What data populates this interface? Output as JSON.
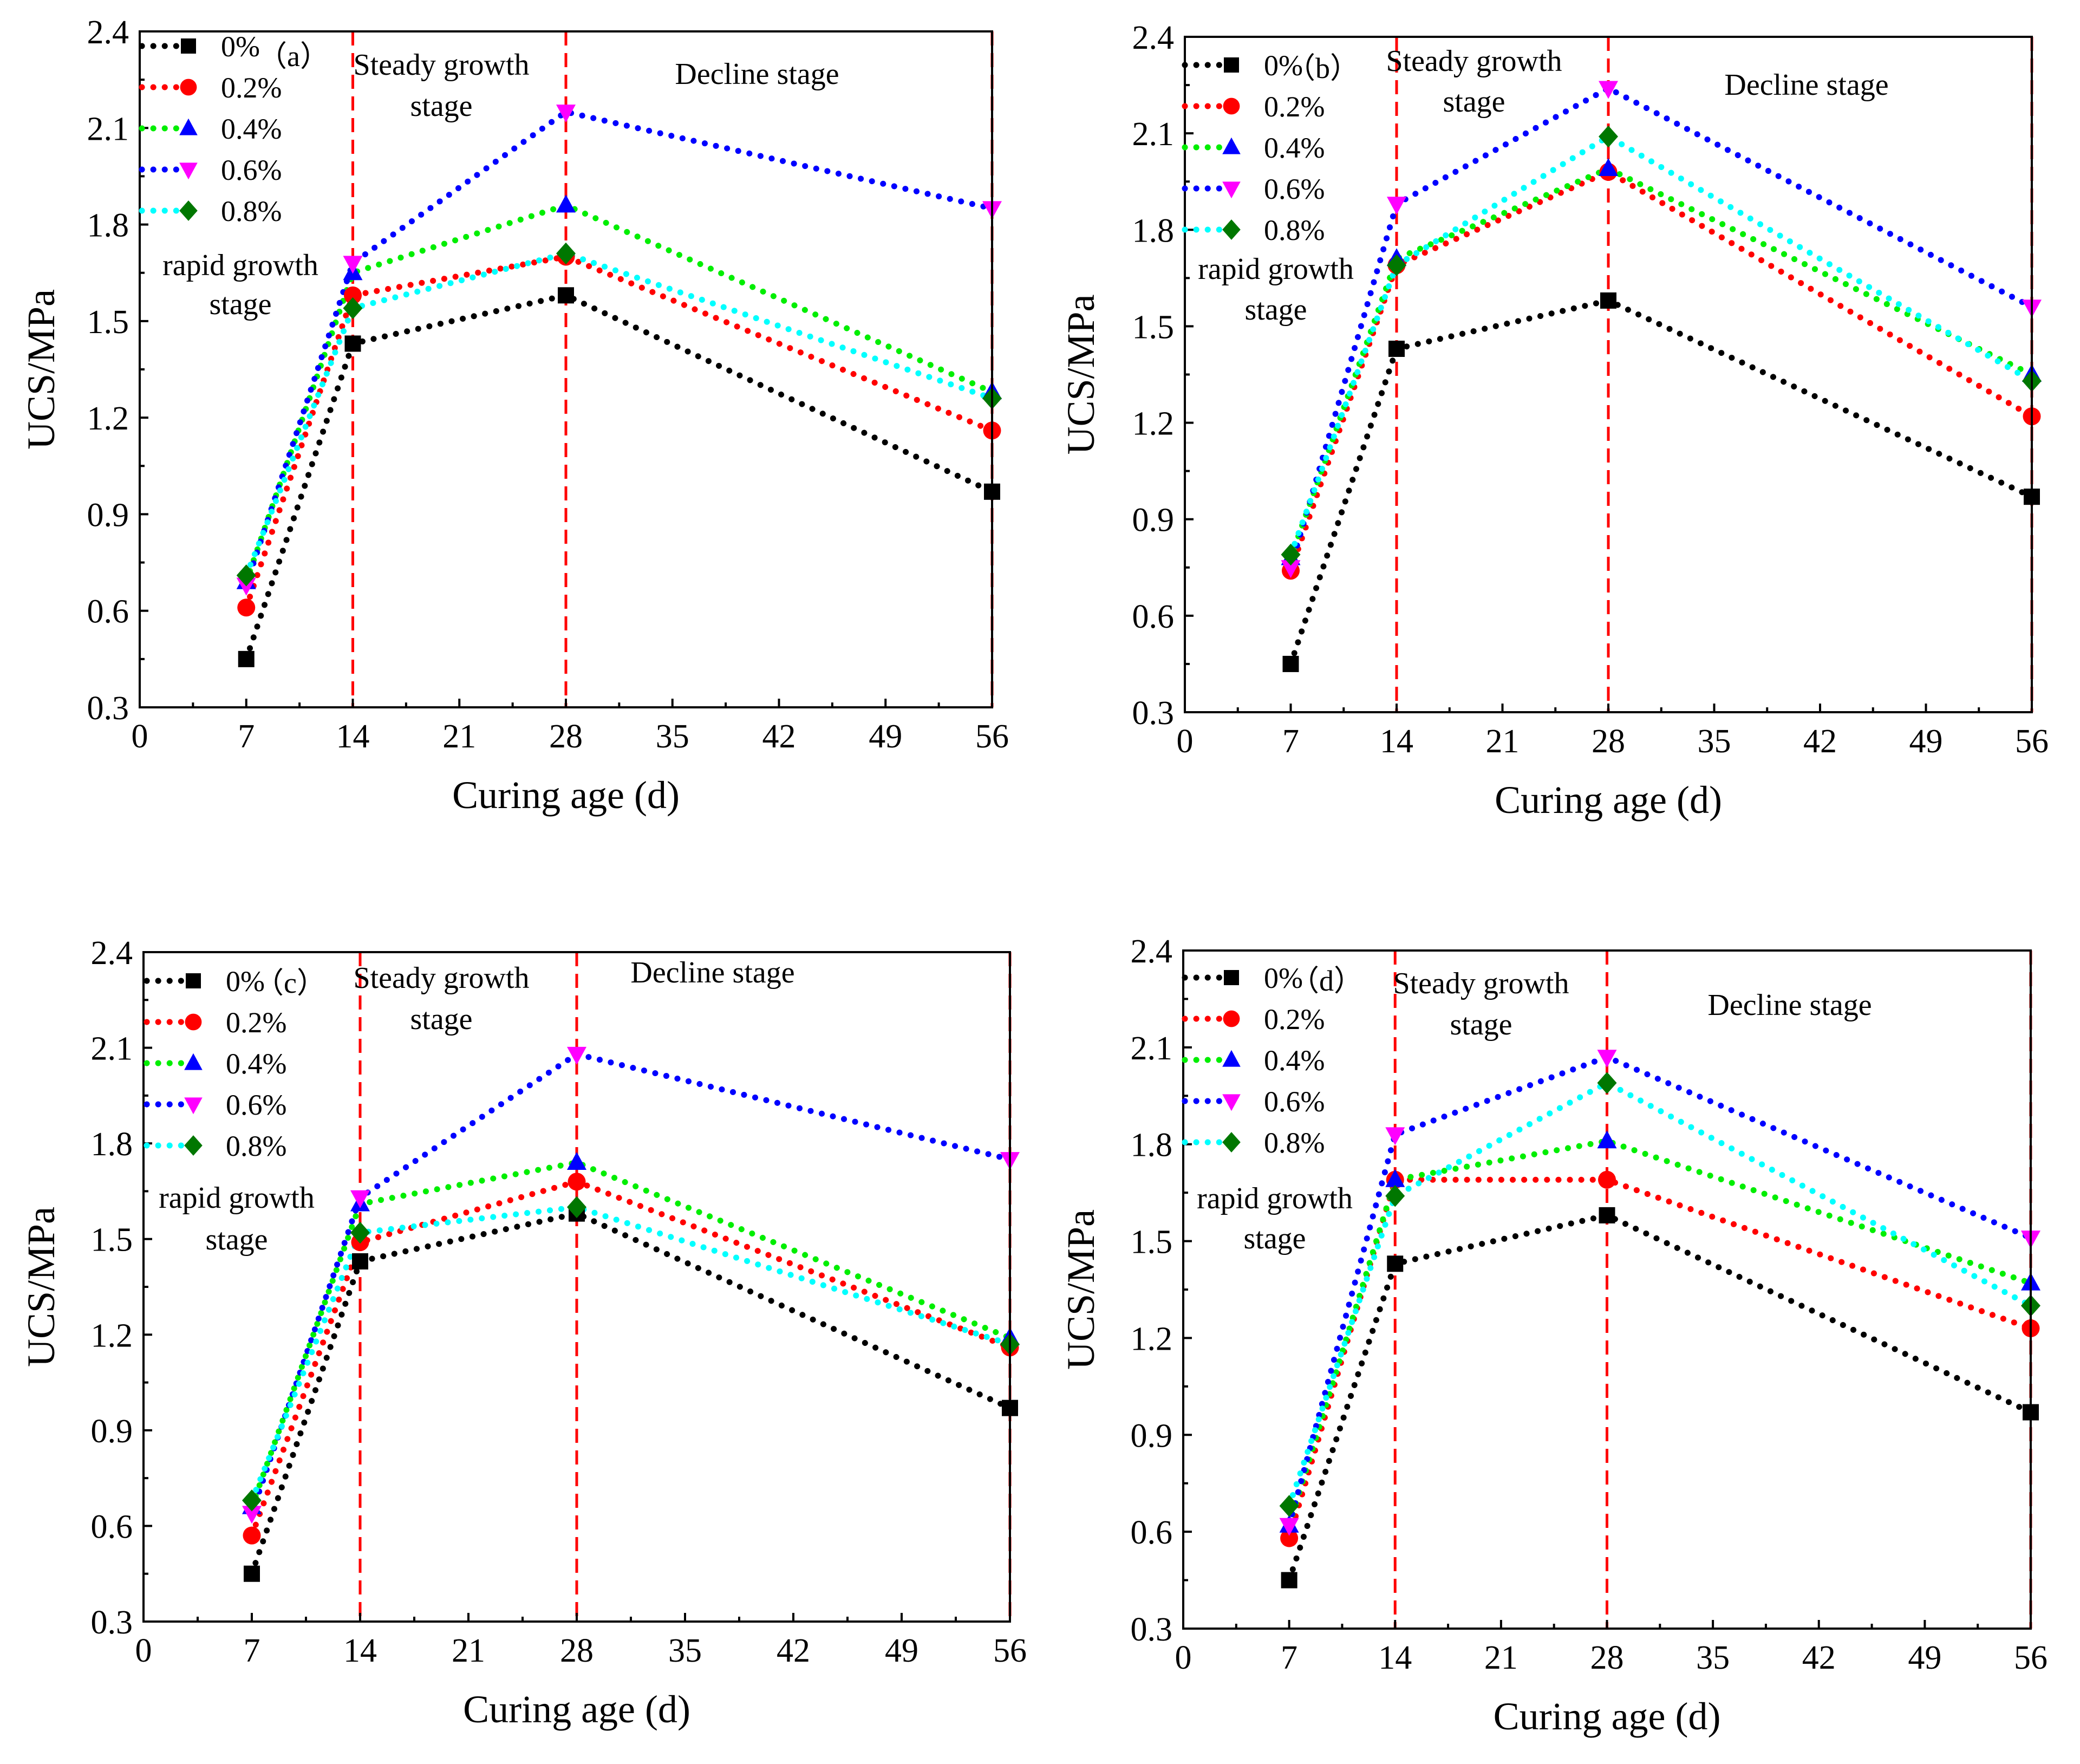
{
  "figure": {
    "series_names": [
      "0%",
      "0.2%",
      "0.4%",
      "0.6%",
      "0.8%"
    ],
    "colors": [
      "#000000",
      "#ff0000",
      "#00ee00",
      "#0000ff",
      "#00ffff"
    ],
    "marker_colors": [
      "#000000",
      "#ff0000",
      "#0000ff",
      "#ff00ff",
      "#007700"
    ],
    "markers": [
      "square",
      "circle",
      "triangle-up",
      "triangle-down",
      "diamond"
    ],
    "stage_line_color": "#ff0000"
  },
  "chart_data": [
    {
      "type": "line",
      "panel_label": "（a）",
      "xlabel": "Curing age (d)",
      "ylabel": "UCS/MPa",
      "xlim": [
        0,
        56
      ],
      "ylim": [
        0.3,
        2.4
      ],
      "xticks": [
        0,
        7,
        14,
        21,
        28,
        35,
        42,
        49,
        56
      ],
      "yticks": [
        "0.3",
        "0.6",
        "0.9",
        "1.2",
        "1.5",
        "1.8",
        "2.1",
        "2.4"
      ],
      "x": [
        7,
        14,
        28,
        56
      ],
      "stage_lines": [
        14,
        28,
        56
      ],
      "annotations": {
        "rapid": [
          "rapid growth",
          "stage"
        ],
        "steady": [
          "Steady growth",
          "stage"
        ],
        "decline": [
          "Decline stage"
        ]
      },
      "series": [
        {
          "name": "0%",
          "values": [
            0.45,
            1.43,
            1.58,
            0.97
          ]
        },
        {
          "name": "0.2%",
          "values": [
            0.61,
            1.58,
            1.7,
            1.16
          ]
        },
        {
          "name": "0.4%",
          "values": [
            0.69,
            1.65,
            1.86,
            1.28
          ]
        },
        {
          "name": "0.6%",
          "values": [
            0.68,
            1.68,
            2.15,
            1.85
          ]
        },
        {
          "name": "0.8%",
          "values": [
            0.71,
            1.54,
            1.71,
            1.26
          ]
        }
      ]
    },
    {
      "type": "line",
      "panel_label": "（b）",
      "xlabel": "Curing age (d)",
      "ylabel": "UCS/MPa",
      "xlim": [
        0,
        56
      ],
      "ylim": [
        0.3,
        2.4
      ],
      "xticks": [
        0,
        7,
        14,
        21,
        28,
        35,
        42,
        49,
        56
      ],
      "yticks": [
        "0.3",
        "0.6",
        "0.9",
        "1.2",
        "1.5",
        "1.8",
        "2.1",
        "2.4"
      ],
      "x": [
        7,
        14,
        28,
        56
      ],
      "stage_lines": [
        14,
        28,
        56
      ],
      "annotations": {
        "rapid": [
          "rapid growth",
          "stage"
        ],
        "steady": [
          "Steady growth",
          "stage"
        ],
        "decline": [
          "Decline stage"
        ]
      },
      "series": [
        {
          "name": "0%",
          "values": [
            0.45,
            1.43,
            1.58,
            0.97
          ]
        },
        {
          "name": "0.2%",
          "values": [
            0.74,
            1.69,
            1.98,
            1.22
          ]
        },
        {
          "name": "0.4%",
          "values": [
            0.78,
            1.71,
            1.99,
            1.35
          ]
        },
        {
          "name": "0.6%",
          "values": [
            0.75,
            1.88,
            2.24,
            1.56
          ]
        },
        {
          "name": "0.8%",
          "values": [
            0.79,
            1.69,
            2.09,
            1.33
          ]
        }
      ]
    },
    {
      "type": "line",
      "panel_label": "（c）",
      "xlabel": "Curing age (d)",
      "ylabel": "UCS/MPa",
      "xlim": [
        0,
        56
      ],
      "ylim": [
        0.3,
        2.4
      ],
      "xticks": [
        0,
        7,
        14,
        21,
        28,
        35,
        42,
        49,
        56
      ],
      "yticks": [
        "0.3",
        "0.6",
        "0.9",
        "1.2",
        "1.5",
        "1.8",
        "2.1",
        "2.4"
      ],
      "x": [
        7,
        14,
        28,
        56
      ],
      "stage_lines": [
        14,
        28,
        56
      ],
      "annotations": {
        "rapid": [
          "rapid growth",
          "stage"
        ],
        "steady": [
          "Steady growth",
          "stage"
        ],
        "decline": [
          "Decline stage"
        ]
      },
      "series": [
        {
          "name": "0%",
          "values": [
            0.45,
            1.43,
            1.58,
            0.97
          ]
        },
        {
          "name": "0.2%",
          "values": [
            0.57,
            1.49,
            1.68,
            1.16
          ]
        },
        {
          "name": "0.4%",
          "values": [
            0.66,
            1.61,
            1.74,
            1.19
          ]
        },
        {
          "name": "0.6%",
          "values": [
            0.64,
            1.63,
            2.08,
            1.75
          ]
        },
        {
          "name": "0.8%",
          "values": [
            0.68,
            1.52,
            1.6,
            1.17
          ]
        }
      ]
    },
    {
      "type": "line",
      "panel_label": "（d）",
      "xlabel": "Curing age (d)",
      "ylabel": "UCS/MPa",
      "xlim": [
        0,
        56
      ],
      "ylim": [
        0.3,
        2.4
      ],
      "xticks": [
        0,
        7,
        14,
        21,
        28,
        35,
        42,
        49,
        56
      ],
      "yticks": [
        "0.3",
        "0.6",
        "0.9",
        "1.2",
        "1.5",
        "1.8",
        "2.1",
        "2.4"
      ],
      "x": [
        7,
        14,
        28,
        56
      ],
      "stage_lines": [
        14,
        28,
        56
      ],
      "annotations": {
        "rapid": [
          "rapid growth",
          "stage"
        ],
        "steady": [
          "Steady growth",
          "stage"
        ],
        "decline": [
          "Decline stage"
        ]
      },
      "series": [
        {
          "name": "0%",
          "values": [
            0.45,
            1.43,
            1.58,
            0.97
          ]
        },
        {
          "name": "0.2%",
          "values": [
            0.58,
            1.69,
            1.69,
            1.23
          ]
        },
        {
          "name": "0.4%",
          "values": [
            0.62,
            1.69,
            1.81,
            1.37
          ]
        },
        {
          "name": "0.6%",
          "values": [
            0.62,
            1.83,
            2.07,
            1.51
          ]
        },
        {
          "name": "0.8%",
          "values": [
            0.68,
            1.64,
            1.99,
            1.3
          ]
        }
      ]
    }
  ]
}
